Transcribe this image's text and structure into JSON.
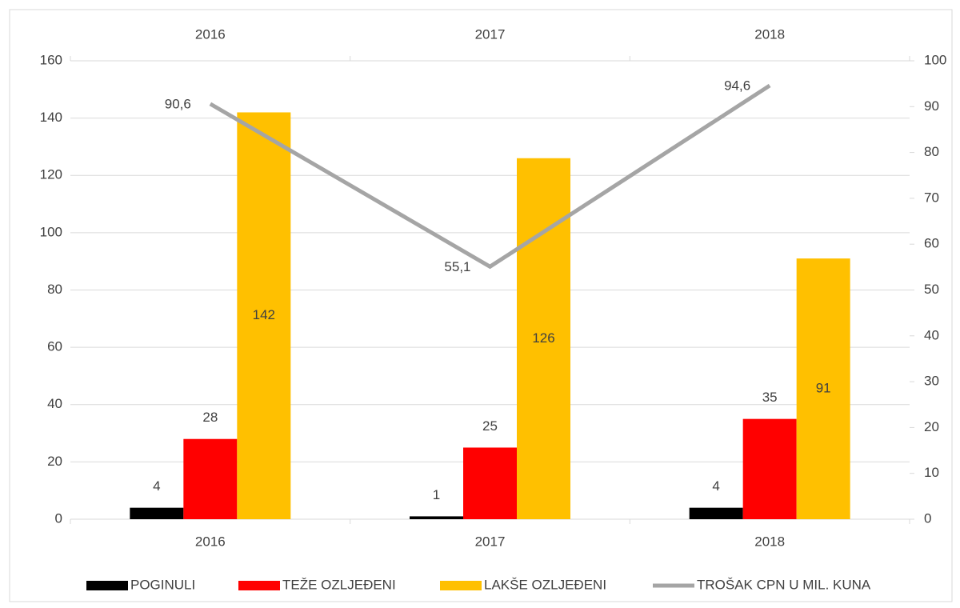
{
  "chart_data": {
    "type": "bar",
    "categories": [
      "2016",
      "2017",
      "2018"
    ],
    "series": [
      {
        "name": "POGINULI",
        "color": "#000000",
        "values": [
          4,
          1,
          4
        ]
      },
      {
        "name": "TEŽE OZLJEĐENI",
        "color": "#ff0000",
        "values": [
          28,
          25,
          35
        ]
      },
      {
        "name": "LAKŠE OZLJEĐENI",
        "color": "#ffc000",
        "values": [
          142,
          126,
          91
        ]
      },
      {
        "name": "TROŠAK CPN U MIL. KUNA",
        "type": "line",
        "axis": "y2",
        "color": "#a5a5a5",
        "values": [
          90.6,
          55.1,
          94.6
        ],
        "value_labels": [
          "90,6",
          "55,1",
          "94,6"
        ]
      }
    ],
    "ylim": [
      0,
      160
    ],
    "yticks": [
      0,
      20,
      40,
      60,
      80,
      100,
      120,
      140,
      160
    ],
    "y2lim": [
      0,
      100
    ],
    "y2ticks": [
      0,
      10,
      20,
      30,
      40,
      50,
      60,
      70,
      80,
      90,
      100
    ],
    "grid": true,
    "legend": "bottom"
  }
}
